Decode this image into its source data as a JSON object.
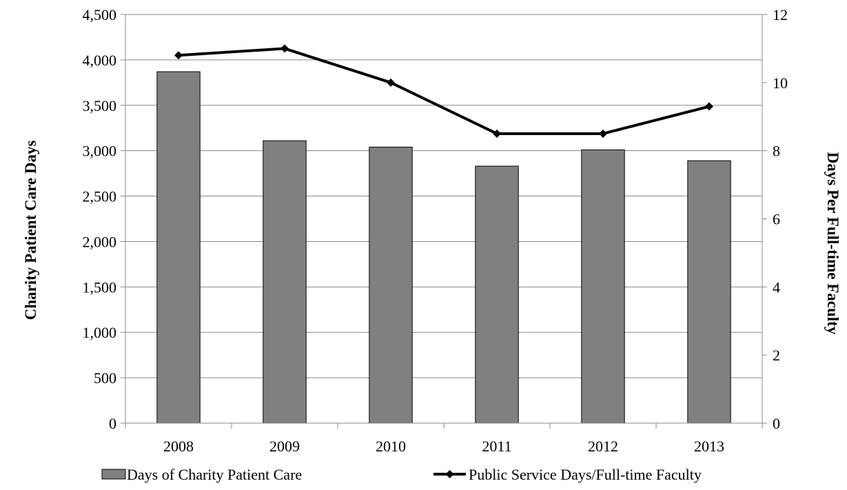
{
  "chart_data": {
    "type": "bar",
    "categories": [
      "2008",
      "2009",
      "2010",
      "2011",
      "2012",
      "2013"
    ],
    "series": [
      {
        "name": "Days of Charity Patient Care",
        "type": "bar",
        "axis": "left",
        "values": [
          3870,
          3110,
          3040,
          2830,
          3010,
          2890
        ]
      },
      {
        "name": "Public Service Days/Full-time Faculty",
        "type": "line",
        "axis": "right",
        "values": [
          10.8,
          11.0,
          10.0,
          8.5,
          8.5,
          9.3
        ]
      }
    ],
    "ylabel": "Charity Patient Care Days",
    "y2label": "Days Per Full-time Faculty",
    "ylim": [
      0,
      4500
    ],
    "y2lim": [
      0,
      12
    ],
    "yticks": [
      "0",
      "500",
      "1,000",
      "1,500",
      "2,000",
      "2,500",
      "3,000",
      "3,500",
      "4,000",
      "4,500"
    ],
    "y2ticks": [
      "0",
      "2",
      "4",
      "6",
      "8",
      "10",
      "12"
    ],
    "grid": true,
    "legend_position": "bottom",
    "colors": {
      "bar": "#808080",
      "line": "#000000",
      "grid": "#888888"
    }
  }
}
